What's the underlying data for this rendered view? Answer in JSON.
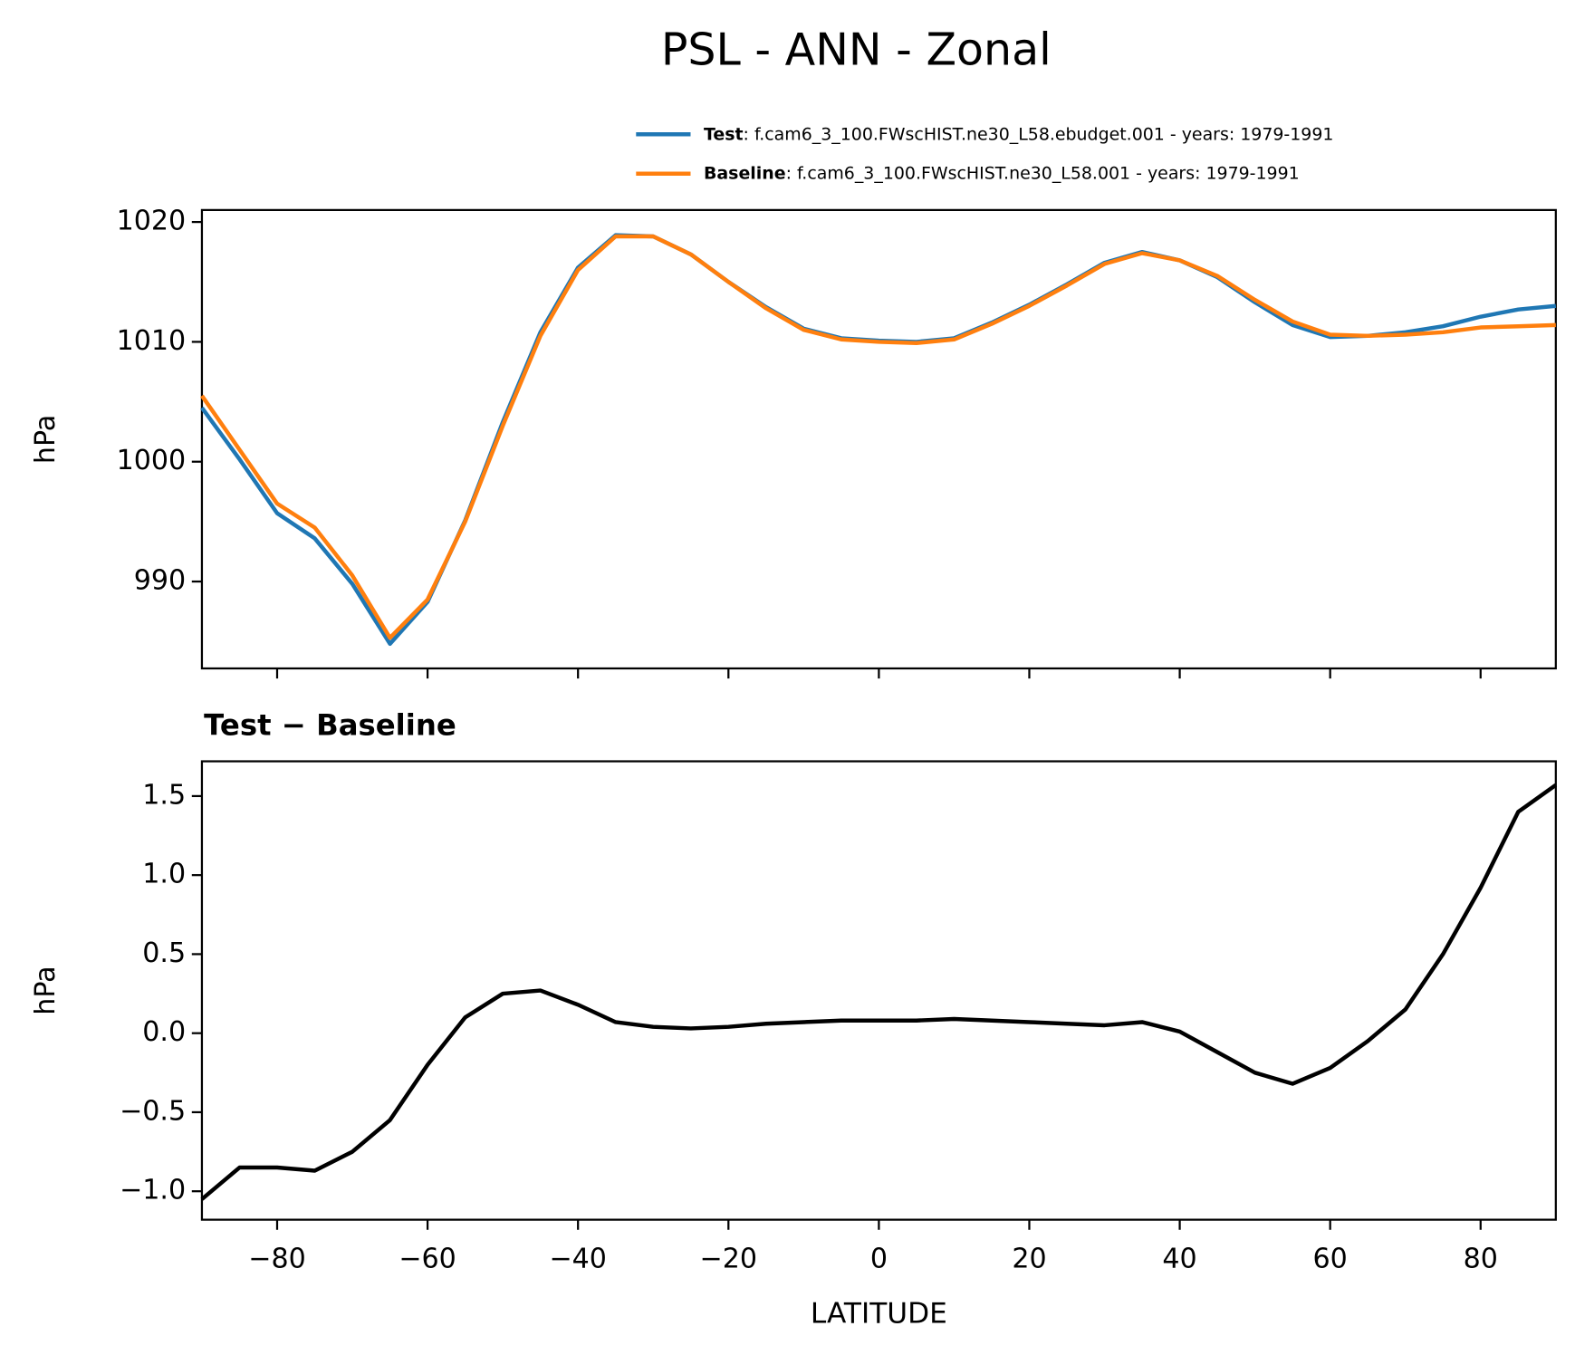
{
  "title": "PSL - ANN - Zonal",
  "chart_data": [
    {
      "type": "line",
      "ylabel": "hPa",
      "x": [
        -90,
        -85,
        -80,
        -75,
        -70,
        -65,
        -60,
        -55,
        -50,
        -45,
        -40,
        -35,
        -30,
        -25,
        -20,
        -15,
        -10,
        -5,
        0,
        5,
        10,
        15,
        20,
        25,
        30,
        35,
        40,
        45,
        50,
        55,
        60,
        65,
        70,
        75,
        80,
        85,
        90
      ],
      "series": [
        {
          "name": "Test",
          "description": ": f.cam6_3_100.FWscHIST.ne30_L58.ebudget.001 - years: 1979-1991",
          "color": "#1f77b4",
          "values": [
            1004.5,
            1000.2,
            995.7,
            993.6,
            989.8,
            984.8,
            988.3,
            995.1,
            1003.3,
            1010.8,
            1016.2,
            1018.9,
            1018.8,
            1017.3,
            1015.0,
            1012.9,
            1011.1,
            1010.3,
            1010.1,
            1010.0,
            1010.3,
            1011.6,
            1013.1,
            1014.8,
            1016.6,
            1017.5,
            1016.8,
            1015.4,
            1013.3,
            1011.4,
            1010.4,
            1010.5,
            1010.8,
            1011.3,
            1012.1,
            1012.7,
            1013.0
          ]
        },
        {
          "name": "Baseline",
          "description": ": f.cam6_3_100.FWscHIST.ne30_L58.001 - years: 1979-1991",
          "color": "#ff7f0e",
          "values": [
            1005.5,
            1001.0,
            996.5,
            994.5,
            990.5,
            985.3,
            988.5,
            995.0,
            1003.0,
            1010.5,
            1016.0,
            1018.8,
            1018.8,
            1017.3,
            1015.0,
            1012.8,
            1011.0,
            1010.2,
            1010.0,
            1009.9,
            1010.2,
            1011.5,
            1013.0,
            1014.7,
            1016.5,
            1017.4,
            1016.8,
            1015.5,
            1013.5,
            1011.7,
            1010.6,
            1010.5,
            1010.6,
            1010.8,
            1011.2,
            1011.3,
            1011.4
          ]
        }
      ],
      "xlim": [
        -90,
        90
      ],
      "xticks": [
        -80,
        -60,
        -40,
        -20,
        0,
        20,
        40,
        60,
        80
      ],
      "ylim": [
        982.75,
        1021.0
      ],
      "yticks": [
        990,
        1000,
        1010,
        1020
      ]
    },
    {
      "type": "line",
      "title": "Test − Baseline",
      "xlabel": "LATITUDE",
      "ylabel": "hPa",
      "x": [
        -90,
        -85,
        -80,
        -75,
        -70,
        -65,
        -60,
        -55,
        -50,
        -45,
        -40,
        -35,
        -30,
        -25,
        -20,
        -15,
        -10,
        -5,
        0,
        5,
        10,
        15,
        20,
        25,
        30,
        35,
        40,
        45,
        50,
        55,
        60,
        65,
        70,
        75,
        80,
        85,
        90
      ],
      "series": [
        {
          "color": "#000000",
          "values": [
            -1.05,
            -0.85,
            -0.85,
            -0.87,
            -0.75,
            -0.55,
            -0.2,
            0.1,
            0.25,
            0.27,
            0.18,
            0.07,
            0.04,
            0.03,
            0.04,
            0.06,
            0.07,
            0.08,
            0.08,
            0.08,
            0.09,
            0.08,
            0.07,
            0.06,
            0.05,
            0.07,
            0.01,
            -0.12,
            -0.25,
            -0.32,
            -0.22,
            -0.05,
            0.15,
            0.5,
            0.92,
            1.4,
            1.57
          ]
        }
      ],
      "xlim": [
        -90,
        90
      ],
      "xticks": [
        {
          "value": -80,
          "label": "−80"
        },
        {
          "value": -60,
          "label": "−60"
        },
        {
          "value": -40,
          "label": "−40"
        },
        {
          "value": -20,
          "label": "−20"
        },
        0,
        20,
        40,
        60,
        80
      ],
      "ylim": [
        -1.18,
        1.72
      ],
      "yticks": [
        {
          "value": -1.0,
          "label": "−1.0"
        },
        {
          "value": -0.5,
          "label": "−0.5"
        },
        {
          "value": 0.0,
          "label": "0.0"
        },
        0.5,
        {
          "value": 1.0,
          "label": "1.0"
        },
        1.5
      ]
    }
  ]
}
